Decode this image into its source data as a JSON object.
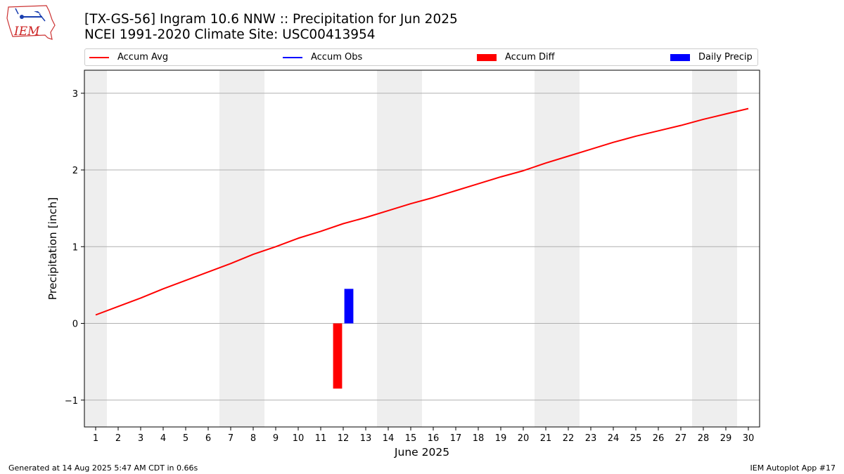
{
  "header": {
    "title_line1": "[TX-GS-56] Ingram 10.6 NNW :: Precipitation for Jun 2025",
    "title_line2": "NCEI 1991-2020 Climate Site: USC00413954",
    "logo_text": "IEM"
  },
  "legend": {
    "items": [
      {
        "label": "Accum Avg",
        "kind": "line",
        "color": "#ff0000"
      },
      {
        "label": "Accum Obs",
        "kind": "line",
        "color": "#0000ff"
      },
      {
        "label": "Accum Diff",
        "kind": "box",
        "color": "#ff0000"
      },
      {
        "label": "Daily Precip",
        "kind": "box",
        "color": "#0000ff"
      }
    ]
  },
  "footer": {
    "generated": "Generated at 14 Aug 2025 5:47 AM CDT in 0.66s",
    "app": "IEM Autoplot App #17"
  },
  "chart_data": {
    "type": "line",
    "title": "[TX-GS-56] Ingram 10.6 NNW :: Precipitation for Jun 2025",
    "subtitle": "NCEI 1991-2020 Climate Site: USC00413954",
    "xlabel": "June 2025",
    "ylabel": "Precipitation [inch]",
    "x": [
      1,
      2,
      3,
      4,
      5,
      6,
      7,
      8,
      9,
      10,
      11,
      12,
      13,
      14,
      15,
      16,
      17,
      18,
      19,
      20,
      21,
      22,
      23,
      24,
      25,
      26,
      27,
      28,
      29,
      30
    ],
    "xlim": [
      0.5,
      30.5
    ],
    "ylim": [
      -1.35,
      3.3
    ],
    "yticks": [
      -1,
      0,
      1,
      2,
      3
    ],
    "ytick_labels": [
      "−1",
      "0",
      "1",
      "2",
      "3"
    ],
    "grid": "y",
    "legend_position": "top",
    "weekend_shading": [
      [
        0.5,
        1.5
      ],
      [
        6.5,
        8.5
      ],
      [
        13.5,
        15.5
      ],
      [
        20.5,
        22.5
      ],
      [
        27.5,
        29.5
      ]
    ],
    "shade_color": "#eeeeee",
    "series": [
      {
        "name": "Accum Avg",
        "kind": "line",
        "color": "#ff0000",
        "values": [
          0.11,
          0.22,
          0.33,
          0.45,
          0.56,
          0.67,
          0.78,
          0.9,
          1.0,
          1.11,
          1.2,
          1.3,
          1.38,
          1.47,
          1.56,
          1.64,
          1.73,
          1.82,
          1.91,
          1.99,
          2.09,
          2.18,
          2.27,
          2.36,
          2.44,
          2.51,
          2.58,
          2.66,
          2.73,
          2.8
        ]
      },
      {
        "name": "Accum Diff",
        "kind": "bar",
        "color": "#ff0000",
        "points": [
          {
            "x": 12,
            "value": -0.85
          }
        ]
      },
      {
        "name": "Daily Precip",
        "kind": "bar",
        "color": "#0000ff",
        "points": [
          {
            "x": 12,
            "value": 0.45
          }
        ]
      }
    ]
  }
}
